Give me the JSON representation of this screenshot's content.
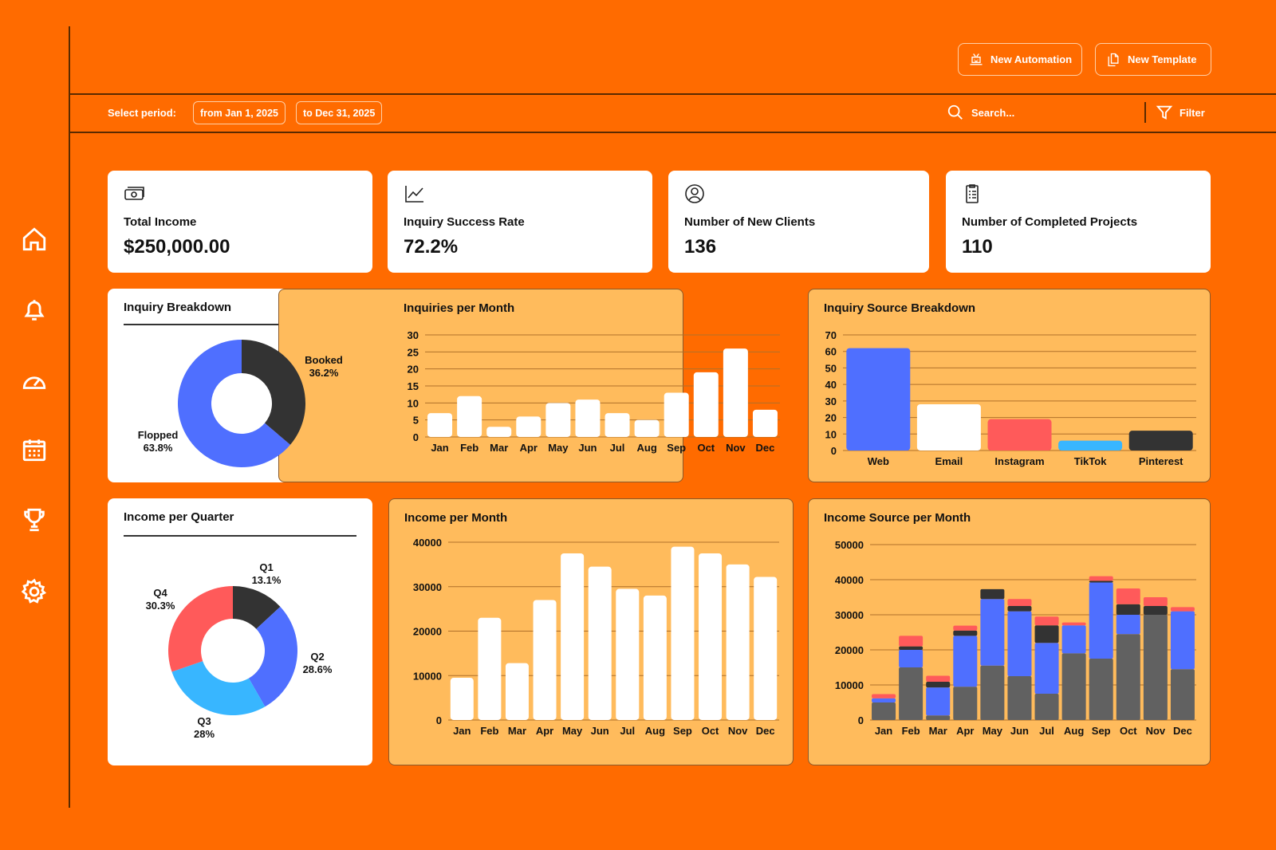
{
  "colors": {
    "background": "#FF6B00",
    "panel": "#FFBB5C",
    "dark": "#333333",
    "blue": "#4F6FFF",
    "gray": "#616161",
    "red": "#FF5A5A",
    "lightblue": "#38B6FF"
  },
  "sidebar": {
    "icons": [
      "home-icon",
      "bell-icon",
      "speedometer-icon",
      "calendar-icon",
      "trophy-icon",
      "gear-icon"
    ]
  },
  "header": {
    "new_automation": "New Automation",
    "new_template": "New Template"
  },
  "toolbar": {
    "select_period": "Select period:",
    "from": "from Jan 1, 2025",
    "to": "to Dec 31, 2025",
    "search_placeholder": "Search...",
    "filter": "Filter"
  },
  "stats": [
    {
      "label": "Total Income",
      "value": "$250,000.00",
      "icon": "money-icon"
    },
    {
      "label": "Inquiry Success Rate",
      "value": "72.2%",
      "icon": "trend-chart-icon"
    },
    {
      "label": "Number of New Clients",
      "value": "136",
      "icon": "user-circle-icon"
    },
    {
      "label": "Number of Completed Projects",
      "value": "110",
      "icon": "clipboard-list-icon"
    }
  ],
  "chart_data": [
    {
      "id": "inquiry_breakdown",
      "type": "pie",
      "title": "Inquiry Breakdown",
      "slices": [
        {
          "label": "Booked",
          "value": 36.2,
          "text": "36.2%",
          "color": "#333333"
        },
        {
          "label": "Flopped",
          "value": 63.8,
          "text": "63.8%",
          "color": "#4F6FFF"
        }
      ]
    },
    {
      "id": "inquiries_per_month",
      "type": "bar",
      "title": "Inquiries per Month",
      "categories": [
        "Jan",
        "Feb",
        "Mar",
        "Apr",
        "May",
        "Jun",
        "Jul",
        "Aug",
        "Sep",
        "Oct",
        "Nov",
        "Dec"
      ],
      "values": [
        7,
        12,
        3,
        6,
        10,
        11,
        7,
        5,
        13,
        19,
        26,
        8
      ],
      "ylim": [
        0,
        30
      ],
      "yticks": [
        0,
        5,
        10,
        15,
        20,
        25,
        30
      ],
      "grid": true
    },
    {
      "id": "inquiry_source",
      "type": "bar",
      "title": "Inquiry Source Breakdown",
      "categories": [
        "Web",
        "Email",
        "Instagram",
        "TikTok",
        "Pinterest"
      ],
      "values": [
        62,
        28,
        19,
        6,
        12
      ],
      "colors": [
        "#4F6FFF",
        "#FFFFFF",
        "#FF5A5A",
        "#38B6FF",
        "#333333"
      ],
      "ylim": [
        0,
        70
      ],
      "yticks": [
        0,
        10,
        20,
        30,
        40,
        50,
        60,
        70
      ],
      "grid": true
    },
    {
      "id": "income_per_quarter",
      "type": "pie",
      "title": "Income per Quarter",
      "slices": [
        {
          "label": "Q1",
          "value": 13.1,
          "text": "13.1%",
          "color": "#333333"
        },
        {
          "label": "Q2",
          "value": 28.6,
          "text": "28.6%",
          "color": "#4F6FFF"
        },
        {
          "label": "Q3",
          "value": 28,
          "text": "28%",
          "color": "#38B6FF"
        },
        {
          "label": "Q4",
          "value": 30.3,
          "text": "30.3%",
          "color": "#FF5A5A"
        }
      ]
    },
    {
      "id": "income_per_month",
      "type": "bar",
      "title": "Income per Month",
      "categories": [
        "Jan",
        "Feb",
        "Mar",
        "Apr",
        "May",
        "Jun",
        "Jul",
        "Aug",
        "Sep",
        "Oct",
        "Nov",
        "Dec"
      ],
      "values": [
        9500,
        23000,
        12800,
        27000,
        37500,
        34500,
        29500,
        28000,
        39000,
        37500,
        35000,
        32200
      ],
      "ylim": [
        0,
        40000
      ],
      "yticks": [
        0,
        10000,
        20000,
        30000,
        40000
      ],
      "grid": true
    },
    {
      "id": "income_source_per_month",
      "type": "bar",
      "stacked": true,
      "title": "Income Source per Month",
      "categories": [
        "Jan",
        "Feb",
        "Mar",
        "Apr",
        "May",
        "Jun",
        "Jul",
        "Aug",
        "Sep",
        "Oct",
        "Nov",
        "Dec"
      ],
      "ylim": [
        0,
        50000
      ],
      "yticks": [
        0,
        10000,
        20000,
        30000,
        40000,
        50000
      ],
      "grid": true,
      "series": [
        {
          "color": "#616161",
          "values": [
            5000,
            15000,
            1300,
            9500,
            15500,
            12500,
            7500,
            19000,
            17500,
            24500,
            30000,
            14500
          ]
        },
        {
          "color": "#4F6FFF",
          "values": [
            1200,
            5000,
            8000,
            14500,
            19000,
            18500,
            14500,
            8000,
            21700,
            5500,
            0,
            16500
          ]
        },
        {
          "color": "#333333",
          "values": [
            0,
            1000,
            1600,
            1500,
            2800,
            1500,
            5000,
            0,
            500,
            3000,
            2500,
            0
          ]
        },
        {
          "color": "#FF5A5A",
          "values": [
            1200,
            3000,
            1700,
            1400,
            0,
            2000,
            2500,
            800,
            1300,
            4500,
            2500,
            1200
          ]
        }
      ]
    }
  ]
}
